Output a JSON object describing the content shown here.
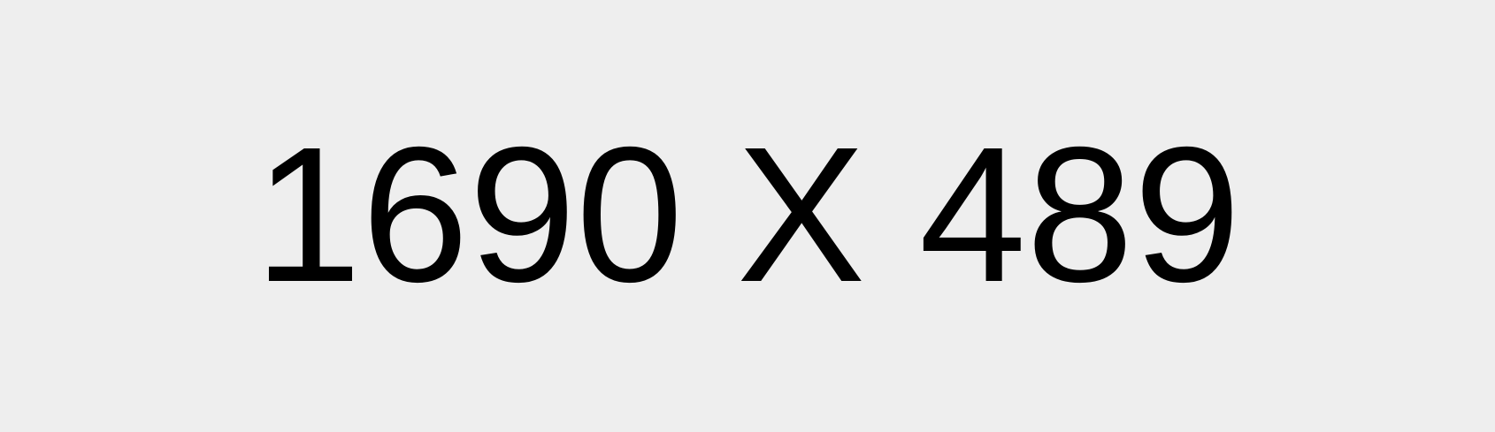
{
  "placeholder": {
    "label": "1690 X 489",
    "background_color": "#eeeeee",
    "text_color": "#000000"
  }
}
